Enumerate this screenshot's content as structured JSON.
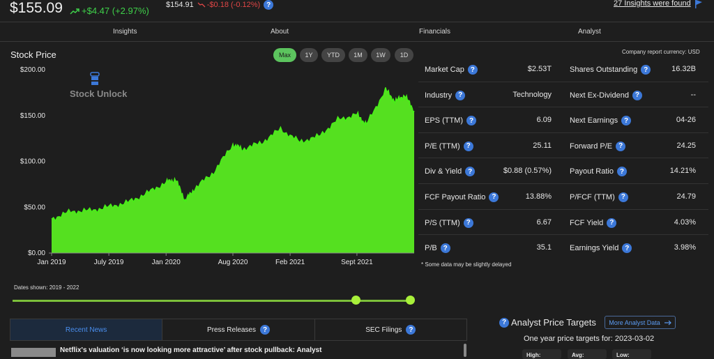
{
  "header": {
    "price": "$155.09",
    "change": "+$4.47 (+2.97%)",
    "after_hours_price": "$154.91",
    "after_hours_change": "-$0.18 (-0.12%)",
    "insights_link": "27 Insights were found",
    "colors": {
      "up": "#3fd14a",
      "down": "#e04646",
      "accent": "#3c78d8"
    }
  },
  "tabs": [
    "Insights",
    "About",
    "Financials",
    "Analyst"
  ],
  "stock_price": {
    "title": "Stock Price",
    "ranges": [
      "Max",
      "1Y",
      "YTD",
      "1M",
      "1W",
      "1D"
    ],
    "active_range": "Max",
    "watermark": "Stock Unlock",
    "dates_shown": "Dates shown: 2019 - 2022"
  },
  "chart_data": {
    "type": "area",
    "title": "",
    "xlabel": "",
    "ylabel": "",
    "ylim": [
      0,
      200
    ],
    "y_ticks": [
      "$0.00",
      "$50.00",
      "$100.00",
      "$150.00",
      "$200.00"
    ],
    "x_ticks": [
      "Jan 2019",
      "July 2019",
      "Jan 2020",
      "Aug 2020",
      "Feb 2021",
      "Sept 2021"
    ],
    "x": [
      "2019-01",
      "2019-03",
      "2019-05",
      "2019-07",
      "2019-09",
      "2019-11",
      "2020-01",
      "2020-02",
      "2020-03",
      "2020-04",
      "2020-06",
      "2020-08",
      "2020-09",
      "2020-11",
      "2021-01",
      "2021-03",
      "2021-05",
      "2021-07",
      "2021-09",
      "2021-10",
      "2021-12",
      "2022-01",
      "2022-02",
      "2022-03"
    ],
    "values": [
      37,
      45,
      46,
      50,
      55,
      65,
      77,
      80,
      57,
      70,
      88,
      118,
      113,
      120,
      135,
      121,
      127,
      145,
      151,
      140,
      178,
      165,
      172,
      155
    ],
    "grid": false,
    "fill_gradient": [
      "#1e3a14",
      "#55e020"
    ],
    "line_color": "#46f016"
  },
  "metrics": {
    "currency_note": "Company report currency: USD",
    "rows": [
      {
        "l_label": "Market Cap",
        "l_value": "$2.53T",
        "r_label": "Shares Outstanding",
        "r_value": "16.32B"
      },
      {
        "l_label": "Industry",
        "l_value": "Technology",
        "r_label": "Next Ex-Dividend",
        "r_value": "--"
      },
      {
        "l_label": "EPS (TTM)",
        "l_value": "6.09",
        "r_label": "Next Earnings",
        "r_value": "04-26"
      },
      {
        "l_label": "P/E (TTM)",
        "l_value": "25.11",
        "r_label": "Forward P/E",
        "r_value": "24.25"
      },
      {
        "l_label": "Div & Yield",
        "l_value": "$0.88 (0.57%)",
        "r_label": "Payout Ratio",
        "r_value": "14.21%"
      },
      {
        "l_label": "FCF Payout Ratio",
        "l_value": "13.88%",
        "r_label": "P/FCF (TTM)",
        "r_value": "24.79"
      },
      {
        "l_label": "P/S (TTM)",
        "l_value": "6.67",
        "r_label": "FCF Yield",
        "r_value": "4.03%"
      },
      {
        "l_label": "P/B",
        "l_value": "35.1",
        "r_label": "Earnings Yield",
        "r_value": "3.98%"
      }
    ],
    "delayed_note": "* Some data may be slightly delayed"
  },
  "news": {
    "tabs": [
      "Recent News",
      "Press Releases",
      "SEC Filings"
    ],
    "active_tab": "Recent News",
    "items": [
      {
        "title": "Netflix's valuation ‘is now looking more attractive’ after stock pullback: Analyst"
      }
    ]
  },
  "analyst": {
    "title": "Analyst Price Targets",
    "more_button": "More Analyst Data",
    "one_year": "One year price targets for: 2023-03-02",
    "high_label": "High:",
    "avg_label": "Avg:",
    "low_label": "Low:"
  }
}
